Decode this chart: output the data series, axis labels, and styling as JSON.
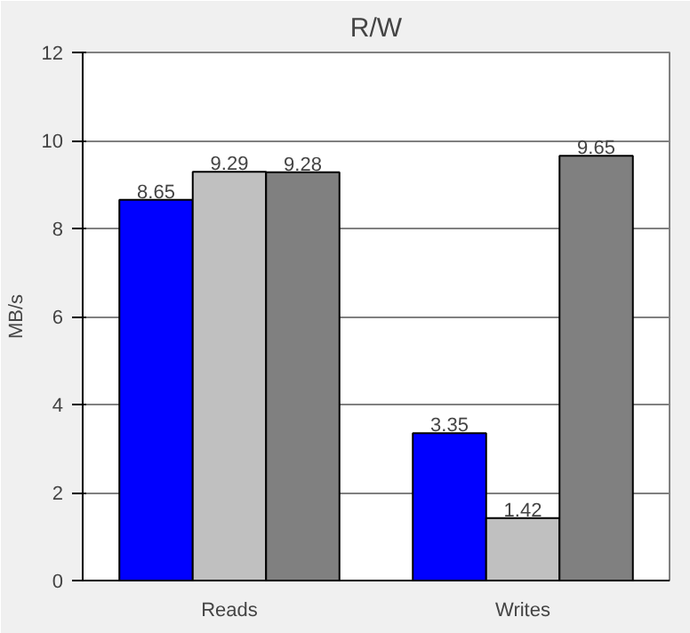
{
  "chart_data": {
    "type": "bar",
    "title": "R/W",
    "ylabel": "MB/s",
    "categories": [
      "Reads",
      "Writes"
    ],
    "series": [
      {
        "color": "#0000ff",
        "values": [
          8.65,
          3.35
        ]
      },
      {
        "color": "#c0c0c0",
        "values": [
          9.29,
          1.42
        ]
      },
      {
        "color": "#808080",
        "values": [
          9.28,
          9.65
        ]
      }
    ],
    "ylim": [
      0,
      12
    ],
    "yticks": [
      0,
      2,
      4,
      6,
      8,
      10,
      12
    ],
    "grid": "y",
    "data_labels": true
  }
}
